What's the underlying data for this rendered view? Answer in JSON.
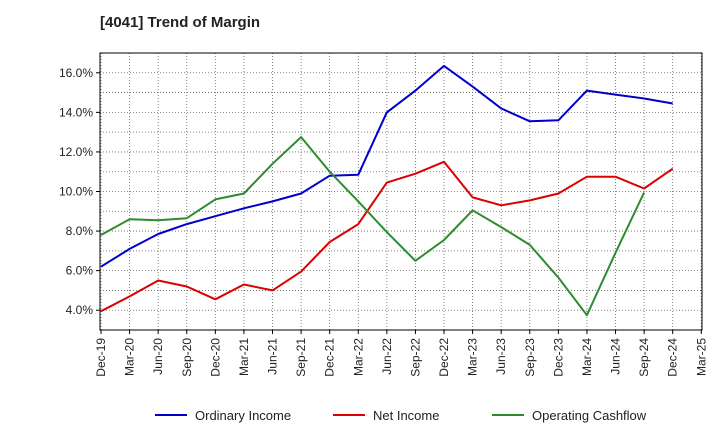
{
  "chart_data": {
    "type": "line",
    "title": "[4041]  Trend of Margin",
    "xlabel": "",
    "ylabel": "",
    "x": [
      "Dec-19",
      "Mar-20",
      "Jun-20",
      "Sep-20",
      "Dec-20",
      "Mar-21",
      "Jun-21",
      "Sep-21",
      "Dec-21",
      "Mar-22",
      "Jun-22",
      "Sep-22",
      "Dec-22",
      "Mar-23",
      "Jun-23",
      "Sep-23",
      "Dec-23",
      "Mar-24",
      "Jun-24",
      "Sep-24",
      "Dec-24",
      "Mar-25"
    ],
    "ylim": [
      3.0,
      17.0
    ],
    "yticks": [
      4.0,
      6.0,
      8.0,
      10.0,
      12.0,
      14.0,
      16.0
    ],
    "ytick_labels": [
      "4.0%",
      "6.0%",
      "8.0%",
      "10.0%",
      "12.0%",
      "14.0%",
      "16.0%"
    ],
    "grid": true,
    "legend_position": "bottom",
    "series": [
      {
        "name": "Ordinary Income",
        "color": "#0000cc",
        "values": [
          6.2,
          7.1,
          7.85,
          8.35,
          8.75,
          9.15,
          9.5,
          9.9,
          10.8,
          10.85,
          14.0,
          15.1,
          16.35,
          15.3,
          14.2,
          13.55,
          13.6,
          15.1,
          14.9,
          14.7,
          14.45,
          null
        ]
      },
      {
        "name": "Net Income",
        "color": "#dd0000",
        "values": [
          3.95,
          4.7,
          5.5,
          5.2,
          4.55,
          5.3,
          5.0,
          5.95,
          7.45,
          8.35,
          10.45,
          10.9,
          11.5,
          9.7,
          9.3,
          9.55,
          9.9,
          10.75,
          10.75,
          10.15,
          11.15,
          null
        ]
      },
      {
        "name": "Operating Cashflow",
        "color": "#2e8b2e",
        "values": [
          7.8,
          8.6,
          8.55,
          8.65,
          9.6,
          9.9,
          11.4,
          12.75,
          11.0,
          9.5,
          7.95,
          6.5,
          7.55,
          9.05,
          8.2,
          7.3,
          5.65,
          3.75,
          6.9,
          9.95,
          null,
          null
        ]
      }
    ]
  }
}
